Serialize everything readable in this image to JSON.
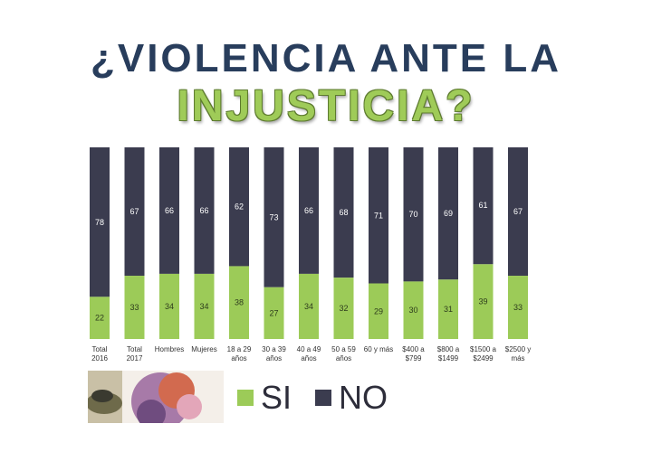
{
  "title": {
    "line1": "¿VIOLENCIA ANTE LA",
    "line2": "INJUSTICIA?"
  },
  "colors": {
    "si": "#9ccb58",
    "no": "#3b3c4f",
    "title_dark": "#283d5c",
    "title_green": "#9fcb58"
  },
  "legend": {
    "si_label": "SI",
    "no_label": "NO"
  },
  "chart_data": {
    "type": "bar",
    "stacked": true,
    "categories": [
      [
        "Total",
        "2016"
      ],
      [
        "Total",
        "2017"
      ],
      [
        "Hombres"
      ],
      [
        "Mujeres"
      ],
      [
        "18 a 29",
        "años"
      ],
      [
        "30 a 39",
        "años"
      ],
      [
        "40 a 49",
        "años"
      ],
      [
        "50 a 59",
        "años"
      ],
      [
        "60 y más"
      ],
      [
        "$400 a",
        "$799"
      ],
      [
        "$800 a",
        "$1499"
      ],
      [
        "$1500 a",
        "$2499"
      ],
      [
        "$2500 y",
        "más"
      ]
    ],
    "series": [
      {
        "name": "SI",
        "values": [
          22,
          33,
          34,
          34,
          38,
          27,
          34,
          32,
          29,
          30,
          31,
          39,
          33
        ]
      },
      {
        "name": "NO",
        "values": [
          78,
          67,
          66,
          66,
          62,
          73,
          66,
          68,
          71,
          70,
          69,
          61,
          67
        ]
      }
    ],
    "ylim": [
      0,
      100
    ],
    "title": "¿VIOLENCIA ANTE LA INJUSTICIA?",
    "xlabel": "",
    "ylabel": "",
    "legend_position": "bottom"
  }
}
